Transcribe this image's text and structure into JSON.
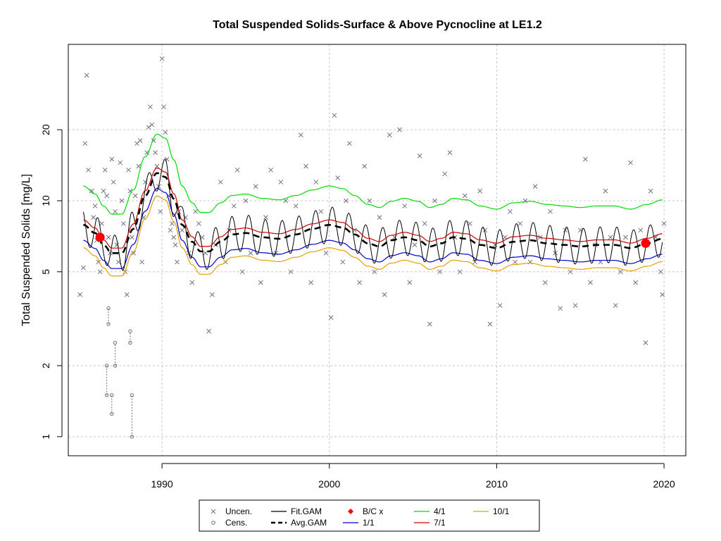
{
  "chart_data": {
    "type": "scatter",
    "title": "Total Suspended Solids-Surface & Above Pycnocline at LE1.2",
    "xlabel": "",
    "ylabel": "Total Suspended Solids [mg/L]",
    "y_scale": "log",
    "xlim": [
      1984.4,
      2021.3
    ],
    "ylim": [
      0.83,
      46
    ],
    "x_ticks": [
      1990,
      2000,
      2010,
      2020
    ],
    "x_tick_labels": [
      "1990",
      "2000",
      "2010",
      "2020"
    ],
    "y_ticks": [
      1,
      2,
      5,
      10,
      20
    ],
    "y_tick_labels": [
      "1",
      "2",
      "5",
      "10",
      "20"
    ],
    "grid": true,
    "legend_position": "bottom",
    "legend": [
      {
        "label": "Uncen.",
        "symbol": "x",
        "color": "#707080"
      },
      {
        "label": "Cens.",
        "symbol": "o",
        "color": "#707070"
      },
      {
        "label": "Fit.GAM",
        "symbol": "line",
        "color": "#000000"
      },
      {
        "label": "Avg.GAM",
        "symbol": "dashed",
        "color": "#000000"
      },
      {
        "label": "B/C x",
        "symbol": "diamond",
        "color": "#ff0000"
      },
      {
        "label": "1/1",
        "symbol": "line",
        "color": "#0000cc"
      },
      {
        "label": "4/1",
        "symbol": "line",
        "color": "#00dd00"
      },
      {
        "label": "7/1",
        "symbol": "line",
        "color": "#cc0000"
      },
      {
        "label": "10/1",
        "symbol": "line",
        "color": "#e8a000"
      }
    ],
    "colors": {
      "uncensored": "#707080",
      "censored": "#707070",
      "fit_gam": "#000000",
      "avg_gam": "#000000",
      "bc": "#ff0000",
      "d1_1": "#0000cc",
      "d4_1": "#00dd00",
      "d7_1": "#cc0000",
      "d10_1": "#e8a000",
      "grid": "#c8c8c8"
    },
    "seasonal_amplitude": 0.13,
    "avg_gam": {
      "x": [
        1985.3,
        1986.0,
        1986.5,
        1987.0,
        1987.6,
        1988.3,
        1989.0,
        1989.7,
        1990.2,
        1990.7,
        1991.2,
        1991.8,
        1992.3,
        1992.8,
        1993.5,
        1994.2,
        1995.0,
        1996.0,
        1997.0,
        1998.0,
        1999.0,
        2000.0,
        2000.8,
        2001.5,
        2002.3,
        2003.0,
        2003.7,
        2004.5,
        2005.3,
        2006.0,
        2006.7,
        2007.4,
        2008.2,
        2009.0,
        2010.0,
        2011.0,
        2012.0,
        2013.0,
        2014.0,
        2015.0,
        2016.0,
        2017.0,
        2018.0,
        2019.0,
        2019.9
      ],
      "y": [
        7.9,
        7.3,
        6.5,
        6.0,
        6.0,
        7.6,
        10.5,
        13.1,
        12.6,
        10.2,
        7.9,
        6.7,
        6.1,
        6.1,
        6.7,
        7.2,
        7.3,
        7.0,
        6.9,
        7.2,
        7.6,
        7.9,
        7.7,
        7.2,
        6.6,
        6.4,
        6.8,
        7.0,
        6.8,
        6.4,
        6.6,
        7.0,
        6.9,
        6.5,
        6.3,
        6.7,
        6.8,
        6.6,
        6.5,
        6.4,
        6.5,
        6.5,
        6.3,
        6.6,
        6.9
      ]
    },
    "bc_points": [
      {
        "x": 1986.3,
        "y": 7.0
      },
      {
        "x": 2018.9,
        "y": 6.6
      }
    ],
    "uncensored": [
      [
        1985.1,
        4.0
      ],
      [
        1985.3,
        5.2
      ],
      [
        1985.4,
        17.5
      ],
      [
        1985.5,
        34.0
      ],
      [
        1985.6,
        13.5
      ],
      [
        1985.8,
        11.0
      ],
      [
        1985.9,
        8.5
      ],
      [
        1986.0,
        9.5
      ],
      [
        1986.1,
        6.8
      ],
      [
        1986.2,
        5.5
      ],
      [
        1986.3,
        5.0
      ],
      [
        1986.4,
        8.0
      ],
      [
        1986.5,
        11.0
      ],
      [
        1986.6,
        13.5
      ],
      [
        1986.7,
        10.5
      ],
      [
        1986.8,
        7.0
      ],
      [
        1986.9,
        6.0
      ],
      [
        1987.0,
        15.0
      ],
      [
        1987.1,
        12.0
      ],
      [
        1987.2,
        9.0
      ],
      [
        1987.3,
        6.5
      ],
      [
        1987.4,
        5.5
      ],
      [
        1987.5,
        14.5
      ],
      [
        1987.6,
        10.0
      ],
      [
        1987.7,
        8.0
      ],
      [
        1987.8,
        5.0
      ],
      [
        1987.9,
        4.0
      ],
      [
        1988.0,
        13.5
      ],
      [
        1988.1,
        11.0
      ],
      [
        1988.2,
        7.0
      ],
      [
        1988.3,
        6.0
      ],
      [
        1988.4,
        10.5
      ],
      [
        1988.5,
        17.5
      ],
      [
        1988.6,
        14.0
      ],
      [
        1988.7,
        18.0
      ],
      [
        1988.8,
        5.5
      ],
      [
        1988.9,
        8.5
      ],
      [
        1989.0,
        12.0
      ],
      [
        1989.1,
        16.0
      ],
      [
        1989.2,
        20.5
      ],
      [
        1989.3,
        25.0
      ],
      [
        1989.4,
        21.0
      ],
      [
        1989.5,
        18.0
      ],
      [
        1989.6,
        16.0
      ],
      [
        1989.7,
        14.0
      ],
      [
        1989.8,
        11.5
      ],
      [
        1989.9,
        9.0
      ],
      [
        1990.0,
        40.0
      ],
      [
        1990.1,
        25.0
      ],
      [
        1990.2,
        19.5
      ],
      [
        1990.3,
        15.0
      ],
      [
        1990.4,
        10.5
      ],
      [
        1990.5,
        7.5
      ],
      [
        1990.6,
        8.0
      ],
      [
        1990.7,
        7.0
      ],
      [
        1990.8,
        6.5
      ],
      [
        1990.9,
        5.5
      ],
      [
        1991.0,
        9.0
      ],
      [
        1991.2,
        7.5
      ],
      [
        1991.4,
        8.5
      ],
      [
        1991.6,
        6.0
      ],
      [
        1991.8,
        4.5
      ],
      [
        1992.0,
        9.0
      ],
      [
        1992.2,
        8.0
      ],
      [
        1992.4,
        7.0
      ],
      [
        1992.6,
        6.0
      ],
      [
        1992.8,
        2.8
      ],
      [
        1993.0,
        4.0
      ],
      [
        1993.2,
        6.5
      ],
      [
        1993.5,
        12.0
      ],
      [
        1993.8,
        5.5
      ],
      [
        1994.0,
        7.5
      ],
      [
        1994.3,
        9.5
      ],
      [
        1994.5,
        13.5
      ],
      [
        1994.8,
        5.0
      ],
      [
        1995.0,
        10.0
      ],
      [
        1995.3,
        6.0
      ],
      [
        1995.6,
        11.5
      ],
      [
        1995.9,
        4.5
      ],
      [
        1996.2,
        8.5
      ],
      [
        1996.5,
        13.5
      ],
      [
        1996.8,
        6.0
      ],
      [
        1997.1,
        12.0
      ],
      [
        1997.4,
        10.0
      ],
      [
        1997.7,
        5.0
      ],
      [
        1998.0,
        9.5
      ],
      [
        1998.3,
        19.0
      ],
      [
        1998.6,
        14.0
      ],
      [
        1998.9,
        4.5
      ],
      [
        1999.2,
        12.0
      ],
      [
        1999.5,
        9.0
      ],
      [
        1999.8,
        6.0
      ],
      [
        2000.1,
        3.2
      ],
      [
        2000.3,
        23.0
      ],
      [
        2000.5,
        12.5
      ],
      [
        2000.8,
        5.5
      ],
      [
        2001.0,
        10.0
      ],
      [
        2001.2,
        17.5
      ],
      [
        2001.5,
        7.5
      ],
      [
        2001.8,
        4.5
      ],
      [
        2002.1,
        14.0
      ],
      [
        2002.4,
        10.0
      ],
      [
        2002.7,
        5.0
      ],
      [
        2003.0,
        8.5
      ],
      [
        2003.3,
        4.0
      ],
      [
        2003.6,
        19.0
      ],
      [
        2003.9,
        7.0
      ],
      [
        2004.2,
        20.0
      ],
      [
        2004.5,
        9.5
      ],
      [
        2004.8,
        4.5
      ],
      [
        2005.1,
        6.5
      ],
      [
        2005.4,
        15.5
      ],
      [
        2005.7,
        8.0
      ],
      [
        2006.0,
        3.0
      ],
      [
        2006.3,
        10.0
      ],
      [
        2006.6,
        5.0
      ],
      [
        2006.9,
        13.0
      ],
      [
        2007.2,
        16.0
      ],
      [
        2007.5,
        7.0
      ],
      [
        2007.8,
        5.0
      ],
      [
        2008.1,
        10.5
      ],
      [
        2008.4,
        8.0
      ],
      [
        2008.7,
        5.5
      ],
      [
        2009.0,
        11.0
      ],
      [
        2009.3,
        7.5
      ],
      [
        2009.6,
        3.0
      ],
      [
        2009.9,
        6.5
      ],
      [
        2010.2,
        3.6
      ],
      [
        2010.5,
        7.0
      ],
      [
        2010.8,
        9.0
      ],
      [
        2011.1,
        5.5
      ],
      [
        2011.4,
        8.0
      ],
      [
        2011.7,
        10.0
      ],
      [
        2012.0,
        5.5
      ],
      [
        2012.3,
        11.5
      ],
      [
        2012.6,
        7.0
      ],
      [
        2012.9,
        4.5
      ],
      [
        2013.2,
        9.0
      ],
      [
        2013.5,
        6.0
      ],
      [
        2013.8,
        3.5
      ],
      [
        2014.1,
        7.5
      ],
      [
        2014.4,
        5.0
      ],
      [
        2014.7,
        3.6
      ],
      [
        2015.0,
        7.5
      ],
      [
        2015.3,
        15.0
      ],
      [
        2015.6,
        4.5
      ],
      [
        2015.9,
        6.5
      ],
      [
        2016.2,
        5.5
      ],
      [
        2016.5,
        11.0
      ],
      [
        2016.8,
        7.0
      ],
      [
        2017.1,
        3.6
      ],
      [
        2017.4,
        5.0
      ],
      [
        2017.7,
        7.0
      ],
      [
        2018.0,
        14.5
      ],
      [
        2018.3,
        4.5
      ],
      [
        2018.6,
        7.5
      ],
      [
        2018.9,
        2.5
      ],
      [
        2019.2,
        11.0
      ],
      [
        2019.5,
        7.0
      ],
      [
        2019.8,
        5.0
      ],
      [
        2019.9,
        4.0
      ],
      [
        2020.0,
        8.0
      ]
    ],
    "censored": [
      {
        "x": 1986.7,
        "y_low": 1.5,
        "y_high": 2.0
      },
      {
        "x": 1986.8,
        "y_low": 3.0,
        "y_high": 3.5
      },
      {
        "x": 1987.0,
        "y_low": 1.25,
        "y_high": 1.5
      },
      {
        "x": 1987.2,
        "y_low": 2.0,
        "y_high": 2.5
      },
      {
        "x": 1988.1,
        "y_low": 2.5,
        "y_high": 2.8
      },
      {
        "x": 1988.2,
        "y_low": 1.0,
        "y_high": 1.5
      }
    ]
  }
}
